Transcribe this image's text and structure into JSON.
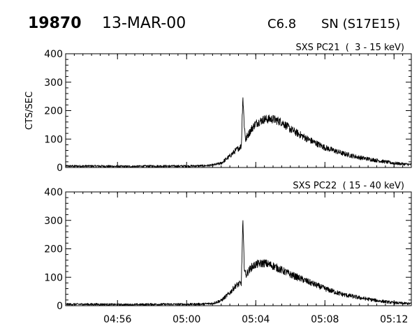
{
  "header": {
    "event_number": "19870",
    "date": "13-MAR-00",
    "goes_class": "C6.8",
    "location": "SN (S17E15)"
  },
  "chart_data": [
    {
      "type": "line",
      "title": "SXS PC21  (  3 - 15 keV)",
      "ylabel": "CTS/SEC",
      "xlabel": "",
      "ylim": [
        0,
        400
      ],
      "yticks": [
        0,
        100,
        200,
        300,
        400
      ],
      "xlim": [
        "04:53",
        "05:13"
      ],
      "xticks": [
        "04:56",
        "05:00",
        "05:04",
        "05:08",
        "05:12"
      ],
      "grid": false,
      "series": [
        {
          "x": [
            "04:53",
            "04:54",
            "04:55",
            "04:56",
            "04:57",
            "04:58",
            "04:59",
            "05:00",
            "05:01",
            "05:01:30",
            "05:02",
            "05:02:30",
            "05:02:50",
            "05:03:10",
            "05:03:15",
            "05:03:20",
            "05:03:25",
            "05:03:30",
            "05:03:45",
            "05:04",
            "05:04:30",
            "05:05",
            "05:05:30",
            "05:06",
            "05:07",
            "05:08",
            "05:09",
            "05:10",
            "05:11",
            "05:12",
            "05:13"
          ],
          "y": [
            5,
            5,
            5,
            4,
            4,
            5,
            5,
            5,
            6,
            8,
            15,
            40,
            60,
            75,
            255,
            150,
            95,
            110,
            135,
            155,
            170,
            170,
            160,
            135,
            100,
            70,
            50,
            35,
            25,
            15,
            10
          ]
        }
      ]
    },
    {
      "type": "line",
      "title": "SXS PC22  ( 15 - 40 keV)",
      "ylabel": "",
      "xlabel": "",
      "ylim": [
        0,
        400
      ],
      "yticks": [
        0,
        100,
        200,
        300,
        400
      ],
      "xlim": [
        "04:53",
        "05:13"
      ],
      "xticks": [
        "04:56",
        "05:00",
        "05:04",
        "05:08",
        "05:12"
      ],
      "grid": false,
      "series": [
        {
          "x": [
            "04:53",
            "04:54",
            "04:55",
            "04:56",
            "04:57",
            "04:58",
            "04:59",
            "05:00",
            "05:01",
            "05:01:30",
            "05:02",
            "05:02:30",
            "05:02:50",
            "05:03:10",
            "05:03:15",
            "05:03:20",
            "05:03:25",
            "05:03:30",
            "05:03:45",
            "05:04",
            "05:04:30",
            "05:05",
            "05:05:30",
            "05:06",
            "05:07",
            "05:08",
            "05:09",
            "05:10",
            "05:11",
            "05:12",
            "05:13"
          ],
          "y": [
            5,
            5,
            5,
            4,
            4,
            5,
            5,
            5,
            6,
            8,
            18,
            45,
            70,
            80,
            295,
            140,
            105,
            115,
            135,
            145,
            150,
            140,
            125,
            110,
            85,
            60,
            40,
            28,
            18,
            10,
            7
          ]
        }
      ]
    }
  ]
}
